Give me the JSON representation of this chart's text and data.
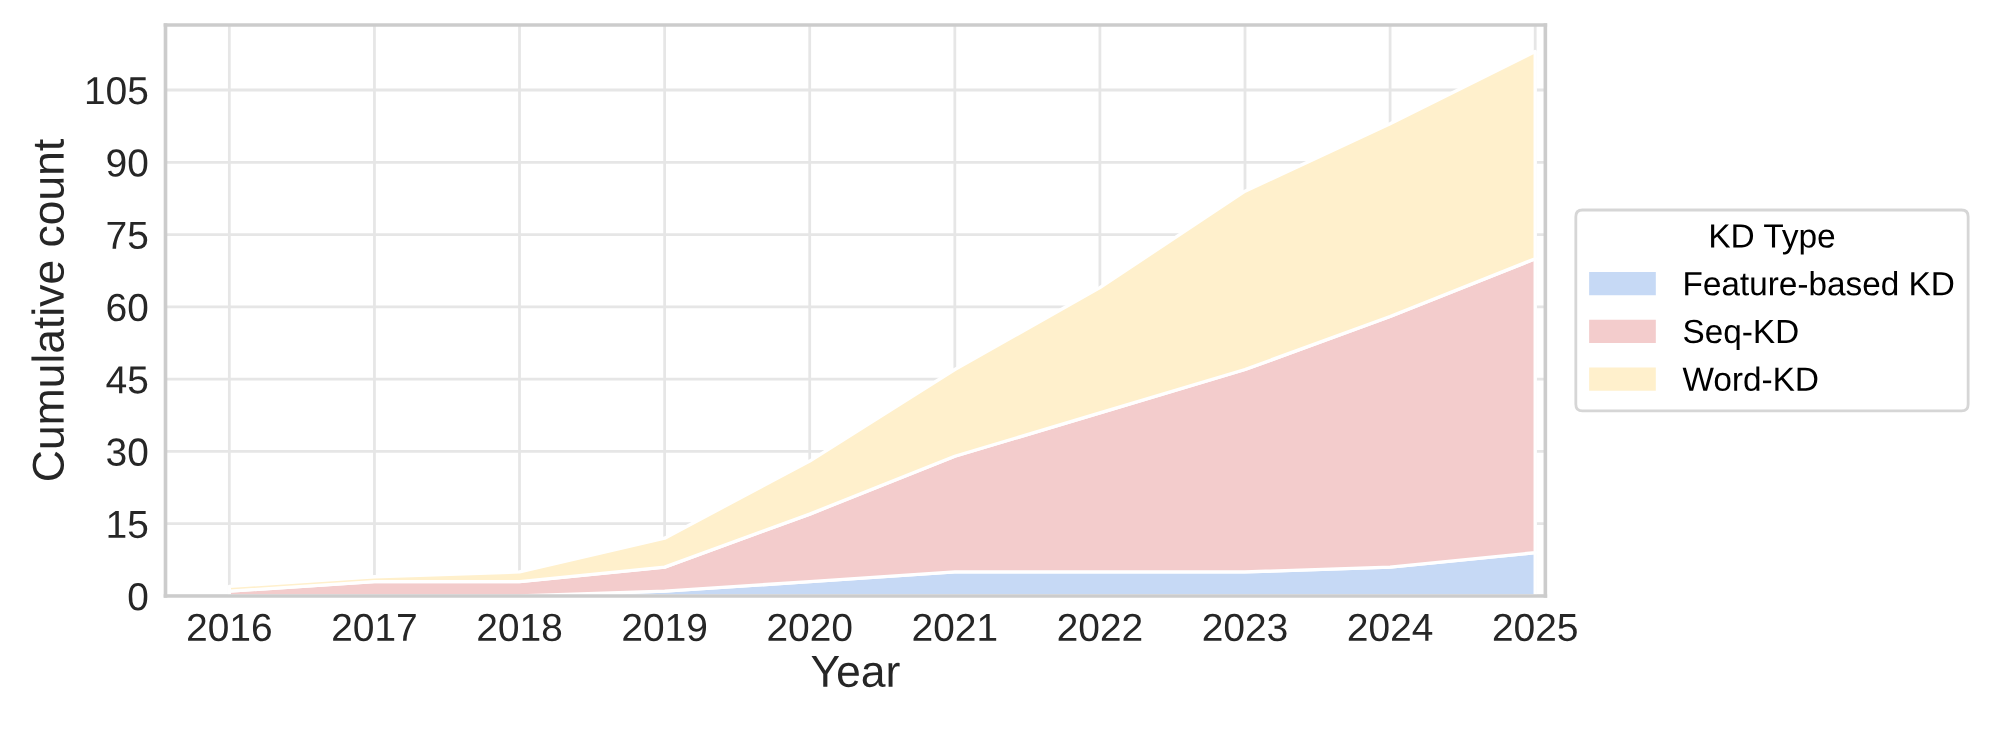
{
  "chart_data": {
    "type": "area",
    "stacked": true,
    "xlabel": "Year",
    "ylabel": "Cumulative count",
    "legend_title": "KD Type",
    "legend": "right",
    "x": [
      2016,
      2017,
      2018,
      2019,
      2020,
      2021,
      2022,
      2023,
      2024,
      2025
    ],
    "series": [
      {
        "name": "Feature-based KD",
        "color": "#c6d9f5",
        "values": [
          0,
          0,
          0,
          1,
          3,
          5,
          5,
          5,
          6,
          9
        ]
      },
      {
        "name": "Seq-KD",
        "color": "#f3cccc",
        "values": [
          1,
          3,
          3,
          5,
          14,
          24,
          33,
          42,
          52,
          61
        ]
      },
      {
        "name": "Word-KD",
        "color": "#fff0cc",
        "values": [
          1,
          1,
          2,
          6,
          11,
          18,
          26,
          37,
          40,
          43
        ]
      }
    ],
    "xlim": [
      2015.56,
      2025.07
    ],
    "ylim": [
      0,
      118.5
    ],
    "xticks": [
      2016,
      2017,
      2018,
      2019,
      2020,
      2021,
      2022,
      2023,
      2024,
      2025
    ],
    "yticks": [
      0,
      15,
      30,
      45,
      60,
      75,
      90,
      105
    ],
    "grid": true
  }
}
